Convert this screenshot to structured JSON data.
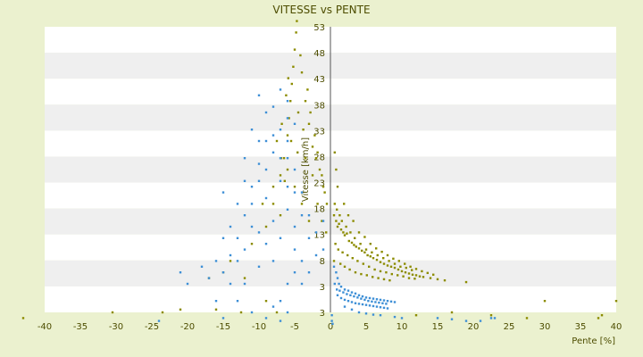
{
  "chart_data": {
    "type": "scatter",
    "title": "VITESSE vs PENTE",
    "xlabel": "Pente [%]",
    "ylabel": "Vitesse [km/h]",
    "xlim": [
      -40,
      40
    ],
    "ylim": [
      3,
      53
    ],
    "x_ticks": [
      "-40",
      "-35",
      "-30",
      "-25",
      "-20",
      "-15",
      "-10",
      "-5",
      "0",
      "5",
      "10",
      "15",
      "20",
      "25",
      "30",
      "35",
      "40"
    ],
    "y_ticks": [
      "3",
      "3",
      "8",
      "13",
      "18",
      "23",
      "28",
      "33",
      "38",
      "43",
      "48",
      "53"
    ],
    "grid": true,
    "legend": "none",
    "colors": {
      "background": "#ebf1cf",
      "band_light": "#ffffff",
      "band_dark": "#efefef",
      "series_olive": "#8c8c00",
      "series_blue": "#3d8fd6",
      "text": "#4d4d00",
      "axis": "#555555"
    },
    "series": [
      {
        "color": "#8c8c00",
        "points": [
          [
            -43,
            2
          ],
          [
            -30.5,
            3
          ],
          [
            -23.5,
            3
          ],
          [
            -21,
            3.5
          ],
          [
            -16,
            3.5
          ],
          [
            -12.5,
            3
          ],
          [
            -7.5,
            3
          ],
          [
            -9,
            5
          ],
          [
            -12,
            9
          ],
          [
            -15,
            10
          ],
          [
            -17,
            9
          ],
          [
            -14,
            12
          ],
          [
            -11,
            15
          ],
          [
            -9,
            18
          ],
          [
            -8,
            22
          ],
          [
            -7,
            27
          ],
          [
            -6.5,
            30
          ],
          [
            -6,
            34
          ],
          [
            -5.8,
            37
          ],
          [
            -5.6,
            40
          ],
          [
            -5.4,
            43
          ],
          [
            -5.2,
            46
          ],
          [
            -5,
            49
          ],
          [
            -4.8,
            52
          ],
          [
            -4.7,
            54
          ],
          [
            -4,
            45
          ],
          [
            -3.5,
            40
          ],
          [
            -3,
            36
          ],
          [
            -2.5,
            32
          ],
          [
            -2,
            30
          ],
          [
            -1.5,
            28
          ],
          [
            -1,
            25
          ],
          [
            -0.5,
            22
          ],
          [
            -4.5,
            38
          ],
          [
            -3.8,
            35
          ],
          [
            -6.2,
            41
          ],
          [
            -5.9,
            44
          ],
          [
            -4.2,
            48
          ],
          [
            -3.2,
            42
          ],
          [
            -2.8,
            38
          ],
          [
            -2.2,
            34
          ],
          [
            -1.8,
            31
          ],
          [
            -1.2,
            27
          ],
          [
            -0.8,
            24
          ],
          [
            -7.5,
            33
          ],
          [
            -6.8,
            36
          ],
          [
            -8,
            25
          ],
          [
            -7,
            20
          ],
          [
            -9.5,
            22
          ],
          [
            -3.5,
            30
          ],
          [
            -2.5,
            27
          ],
          [
            -1.8,
            22
          ],
          [
            -1.2,
            19
          ],
          [
            -0.6,
            17
          ],
          [
            -6,
            28
          ],
          [
            -5,
            25
          ],
          [
            -4,
            22
          ],
          [
            -3,
            19
          ],
          [
            -5.5,
            33
          ],
          [
            -4.6,
            31
          ],
          [
            -6.4,
            26
          ],
          [
            -6.9,
            30
          ],
          [
            0.5,
            20
          ],
          [
            0.8,
            19
          ],
          [
            1,
            18
          ],
          [
            1.2,
            18.5
          ],
          [
            1.5,
            17.5
          ],
          [
            1.8,
            17
          ],
          [
            2,
            16.5
          ],
          [
            2.3,
            16.8
          ],
          [
            2.6,
            15.5
          ],
          [
            3,
            15.2
          ],
          [
            3.3,
            14.8
          ],
          [
            3.6,
            14.5
          ],
          [
            4,
            14.2
          ],
          [
            4.4,
            13.8
          ],
          [
            4.8,
            13.5
          ],
          [
            5.2,
            13
          ],
          [
            5.6,
            12.8
          ],
          [
            6,
            12.5
          ],
          [
            6.5,
            12.2
          ],
          [
            7,
            11.8
          ],
          [
            7.5,
            11.5
          ],
          [
            8,
            11.2
          ],
          [
            8.5,
            11
          ],
          [
            9,
            10.8
          ],
          [
            9.5,
            10.5
          ],
          [
            10,
            10.2
          ],
          [
            10.5,
            10
          ],
          [
            11,
            9.8
          ],
          [
            11.5,
            9.6
          ],
          [
            12,
            9.5
          ],
          [
            12.5,
            9.3
          ],
          [
            13,
            9.2
          ],
          [
            14,
            9
          ],
          [
            15,
            8.8
          ],
          [
            16,
            8.6
          ],
          [
            19,
            8.3
          ],
          [
            0.6,
            22
          ],
          [
            0.9,
            21
          ],
          [
            1.3,
            20
          ],
          [
            1.6,
            19
          ],
          [
            2.2,
            18
          ],
          [
            2.8,
            17
          ],
          [
            3.4,
            16
          ],
          [
            4.2,
            15
          ],
          [
            5,
            14
          ],
          [
            5.8,
            13.5
          ],
          [
            6.6,
            13
          ],
          [
            7.4,
            12.5
          ],
          [
            8.2,
            12
          ],
          [
            9,
            11.5
          ],
          [
            9.8,
            11
          ],
          [
            10.6,
            10.8
          ],
          [
            11.4,
            10.4
          ],
          [
            0.7,
            15
          ],
          [
            1.1,
            14
          ],
          [
            1.7,
            13.5
          ],
          [
            2.4,
            13
          ],
          [
            3.1,
            12.5
          ],
          [
            3.8,
            12
          ],
          [
            4.6,
            11.5
          ],
          [
            5.4,
            11
          ],
          [
            6.2,
            10.5
          ],
          [
            7,
            10.2
          ],
          [
            7.8,
            10
          ],
          [
            8.6,
            9.7
          ],
          [
            9.4,
            9.5
          ],
          [
            10.2,
            9.3
          ],
          [
            11,
            9
          ],
          [
            11.8,
            8.9
          ],
          [
            0.5,
            12
          ],
          [
            1.4,
            11.5
          ],
          [
            2,
            11
          ],
          [
            2.7,
            10.5
          ],
          [
            3.5,
            10
          ],
          [
            4.3,
            9.7
          ],
          [
            5.1,
            9.5
          ],
          [
            5.9,
            9.2
          ],
          [
            6.7,
            9
          ],
          [
            7.5,
            8.8
          ],
          [
            8.3,
            8.6
          ],
          [
            1,
            25
          ],
          [
            0.8,
            28
          ],
          [
            0.6,
            31
          ],
          [
            1.9,
            22
          ],
          [
            2.5,
            20
          ],
          [
            3.2,
            19
          ],
          [
            4,
            17
          ],
          [
            4.8,
            16.2
          ],
          [
            5.6,
            15
          ],
          [
            6.4,
            14.2
          ],
          [
            7.2,
            13.6
          ],
          [
            8,
            13
          ],
          [
            8.8,
            12.4
          ],
          [
            9.6,
            12
          ],
          [
            10.4,
            11.5
          ],
          [
            11.2,
            11
          ],
          [
            12,
            10.6
          ],
          [
            12.8,
            10.2
          ],
          [
            13.6,
            9.9
          ],
          [
            14.4,
            9.6
          ],
          [
            17,
            3
          ],
          [
            22.5,
            2.5
          ],
          [
            27.5,
            2
          ],
          [
            30,
            5
          ],
          [
            37.5,
            2
          ],
          [
            40,
            5
          ],
          [
            38,
            2.5
          ],
          [
            12,
            2.5
          ]
        ]
      },
      {
        "color": "#3d8fd6",
        "points": [
          [
            -24,
            1.5
          ],
          [
            -20,
            8
          ],
          [
            -21,
            10
          ],
          [
            -18,
            11
          ],
          [
            -17,
            9
          ],
          [
            -16,
            12
          ],
          [
            -15,
            10
          ],
          [
            -14,
            13
          ],
          [
            -16,
            5
          ],
          [
            -15,
            2
          ],
          [
            -13,
            16
          ],
          [
            -12,
            20
          ],
          [
            -12,
            14
          ],
          [
            -11,
            22
          ],
          [
            -11,
            18
          ],
          [
            -10,
            11
          ],
          [
            -10,
            26
          ],
          [
            -10,
            29
          ],
          [
            -9,
            33
          ],
          [
            -9,
            38
          ],
          [
            -9,
            23
          ],
          [
            -8,
            19
          ],
          [
            -8,
            31
          ],
          [
            -8,
            39
          ],
          [
            -7,
            35
          ],
          [
            -7,
            42
          ],
          [
            -7,
            26
          ],
          [
            -7,
            16
          ],
          [
            -6,
            21
          ],
          [
            -6,
            25
          ],
          [
            -6,
            30
          ],
          [
            -6,
            37
          ],
          [
            -6,
            33
          ],
          [
            -5,
            24
          ],
          [
            -5,
            28
          ],
          [
            -5,
            18
          ],
          [
            -5,
            14
          ],
          [
            -4,
            20
          ],
          [
            -4,
            24
          ],
          [
            -4,
            12
          ],
          [
            -3,
            16
          ],
          [
            -3,
            20
          ],
          [
            -2,
            13
          ],
          [
            -2,
            17
          ],
          [
            -1,
            14
          ],
          [
            -1,
            19
          ],
          [
            -12,
            8
          ],
          [
            -13,
            5
          ],
          [
            -11,
            3
          ],
          [
            -9,
            2
          ],
          [
            -8,
            4
          ],
          [
            -7,
            1.5
          ],
          [
            -10,
            41
          ],
          [
            -11,
            25
          ],
          [
            -12,
            30
          ],
          [
            -13,
            22
          ],
          [
            -14,
            18
          ],
          [
            -15,
            16
          ],
          [
            -8,
            12
          ],
          [
            -9,
            15
          ],
          [
            -10,
            17
          ],
          [
            -6,
            8
          ],
          [
            -5,
            10
          ],
          [
            -4,
            8
          ],
          [
            -3,
            10
          ],
          [
            -7,
            5
          ],
          [
            -6,
            3
          ],
          [
            -9,
            28
          ],
          [
            -8,
            34
          ],
          [
            -7,
            30
          ],
          [
            -6,
            40
          ],
          [
            -5,
            36
          ],
          [
            -11,
            35
          ],
          [
            -10,
            33
          ],
          [
            -12,
            26
          ],
          [
            -13,
            12
          ],
          [
            -14,
            8
          ],
          [
            -15,
            24
          ],
          [
            0.5,
            11
          ],
          [
            0.8,
            10
          ],
          [
            1,
            9
          ],
          [
            1.2,
            8
          ],
          [
            1.5,
            7.5
          ],
          [
            2,
            7
          ],
          [
            2.5,
            6.8
          ],
          [
            3,
            6.5
          ],
          [
            3.5,
            6.3
          ],
          [
            4,
            6
          ],
          [
            4.5,
            5.8
          ],
          [
            5,
            5.6
          ],
          [
            5.5,
            5.5
          ],
          [
            6,
            5.4
          ],
          [
            6.5,
            5.3
          ],
          [
            7,
            5.2
          ],
          [
            7.5,
            5.1
          ],
          [
            8,
            5
          ],
          [
            8.5,
            4.9
          ],
          [
            9,
            4.8
          ],
          [
            1,
            6
          ],
          [
            1.5,
            5.5
          ],
          [
            2,
            5.2
          ],
          [
            2.5,
            5
          ],
          [
            3,
            4.8
          ],
          [
            3.5,
            4.6
          ],
          [
            4,
            4.5
          ],
          [
            4.5,
            4.4
          ],
          [
            5,
            4.3
          ],
          [
            5.5,
            4.2
          ],
          [
            6,
            4.1
          ],
          [
            6.5,
            4
          ],
          [
            7,
            3.9
          ],
          [
            7.5,
            3.8
          ],
          [
            8,
            3.7
          ],
          [
            0.6,
            8
          ],
          [
            0.9,
            7
          ],
          [
            1.3,
            6.8
          ],
          [
            1.8,
            6.5
          ],
          [
            2.3,
            6.2
          ],
          [
            2.8,
            6
          ],
          [
            3.3,
            5.8
          ],
          [
            3.8,
            5.6
          ],
          [
            4.3,
            5.4
          ],
          [
            4.8,
            5.2
          ],
          [
            5.3,
            5
          ],
          [
            5.8,
            4.9
          ],
          [
            6.3,
            4.8
          ],
          [
            6.8,
            4.7
          ],
          [
            7.3,
            4.6
          ],
          [
            7.8,
            4.5
          ],
          [
            2,
            4
          ],
          [
            3,
            3.5
          ],
          [
            4,
            3
          ],
          [
            5,
            2.8
          ],
          [
            6,
            2.6
          ],
          [
            7,
            2.5
          ],
          [
            9,
            2.2
          ],
          [
            10,
            2
          ],
          [
            0.2,
            2.5
          ],
          [
            0.2,
            1.5
          ],
          [
            0.3,
            1
          ],
          [
            15,
            2
          ],
          [
            17,
            1.8
          ],
          [
            19,
            1.5
          ],
          [
            21,
            1.5
          ],
          [
            22.5,
            2
          ],
          [
            23,
            2
          ]
        ]
      }
    ]
  }
}
